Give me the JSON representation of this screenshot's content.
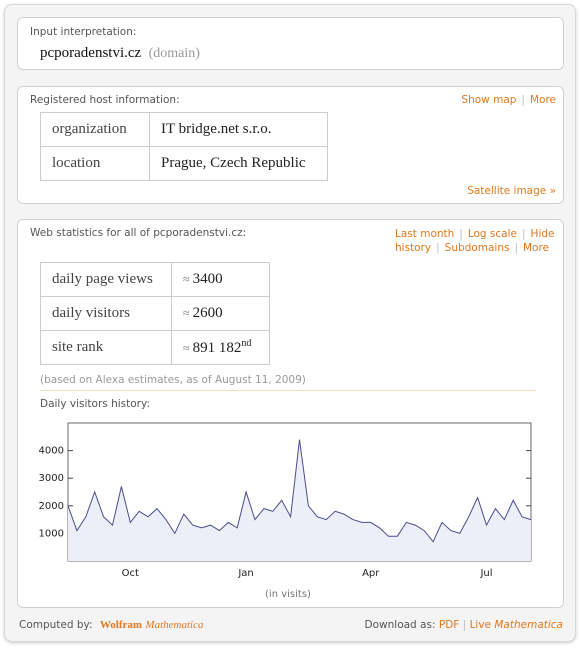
{
  "input_pod": {
    "title": "Input interpretation:",
    "value": "pcporadenstvi.cz",
    "type_note": "(domain)"
  },
  "host_pod": {
    "title": "Registered host information:",
    "links": [
      "Show map",
      "More"
    ],
    "table": {
      "rows": [
        [
          "organization",
          "IT bridge.net s.r.o."
        ],
        [
          "location",
          "Prague, Czech Republic"
        ]
      ]
    },
    "footer_link": "Satellite image »"
  },
  "stats_pod": {
    "title": "Web statistics for all of pcporadenstvi.cz:",
    "links": [
      "Last month",
      "Log scale",
      "Hide history",
      "Subdomains",
      "More"
    ],
    "table": {
      "rows": [
        [
          "daily page views",
          "≈",
          "3400"
        ],
        [
          "daily visitors",
          "≈",
          "2600"
        ],
        [
          "site rank",
          "≈",
          "891 182",
          "nd"
        ]
      ]
    },
    "note": "(based on Alexa estimates, as of August 11, 2009)",
    "history_title": "Daily visitors history:"
  },
  "chart_data": {
    "type": "line",
    "x_label": "(in visits)",
    "categories": [
      null,
      null,
      null,
      null,
      null,
      null,
      null,
      "Oct",
      null,
      null,
      null,
      null,
      null,
      null,
      null,
      null,
      null,
      null,
      null,
      null,
      "Jan",
      null,
      null,
      null,
      null,
      null,
      null,
      null,
      null,
      null,
      null,
      null,
      null,
      null,
      "Apr",
      null,
      null,
      null,
      null,
      null,
      null,
      null,
      null,
      null,
      null,
      null,
      null,
      "Jul",
      null,
      null,
      null,
      null,
      null
    ],
    "series": [
      {
        "name": "daily visitors",
        "color": "#4b4b8f",
        "values": [
          2000,
          1100,
          1600,
          2500,
          1600,
          1300,
          2700,
          1400,
          1800,
          1600,
          1900,
          1500,
          1000,
          1700,
          1300,
          1200,
          1300,
          1100,
          1400,
          1200,
          2500,
          1500,
          1900,
          1800,
          2200,
          1600,
          4400,
          2000,
          1600,
          1500,
          1800,
          1700,
          1500,
          1400,
          1400,
          1200,
          900,
          900,
          1400,
          1300,
          1100,
          700,
          1400,
          1100,
          1000,
          1600,
          2300,
          1300,
          1900,
          1500,
          2200,
          1600,
          1500
        ]
      }
    ],
    "ylim": [
      0,
      5000
    ],
    "yticks": [
      1000,
      2000,
      3000,
      4000
    ],
    "fill": "#eeeef8"
  },
  "footer": {
    "computed_by": "Computed by:",
    "brand": "Wolfram",
    "product": "Mathematica",
    "download_as": "Download as:",
    "pdf": "PDF",
    "live": "Live",
    "live_product": "Mathematica"
  }
}
